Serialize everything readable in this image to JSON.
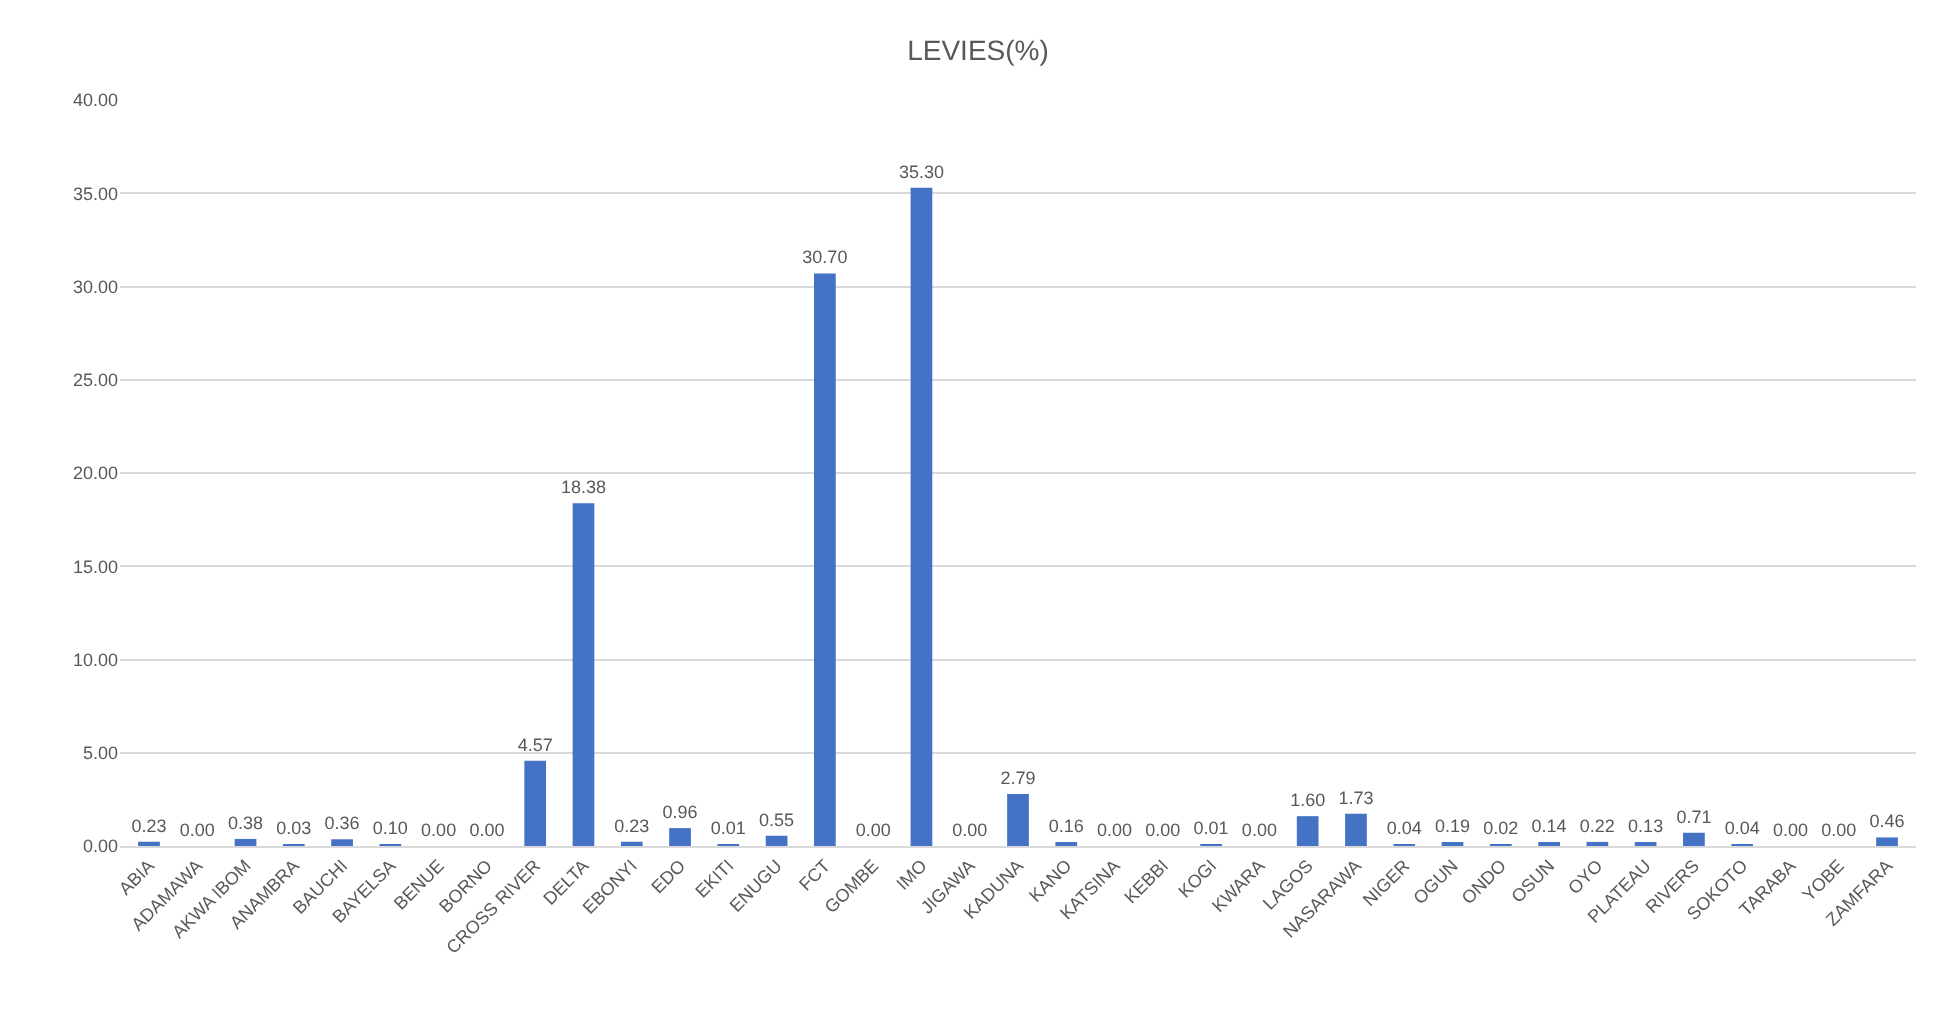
{
  "chart_data": {
    "type": "bar",
    "title": "LEVIES(%)",
    "categories": [
      "ABIA",
      "ADAMAWA",
      "AKWA IBOM",
      "ANAMBRA",
      "BAUCHI",
      "BAYELSA",
      "BENUE",
      "BORNO",
      "CROSS RIVER",
      "DELTA",
      "EBONYI",
      "EDO",
      "EKITI",
      "ENUGU",
      "FCT",
      "GOMBE",
      "IMO",
      "JIGAWA",
      "KADUNA",
      "KANO",
      "KATSINA",
      "KEBBI",
      "KOGI",
      "KWARA",
      "LAGOS",
      "NASARAWA",
      "NIGER",
      "OGUN",
      "ONDO",
      "OSUN",
      "OYO",
      "PLATEAU",
      "RIVERS",
      "SOKOTO",
      "TARABA",
      "YOBE",
      "ZAMFARA"
    ],
    "values": [
      0.23,
      0.0,
      0.38,
      0.03,
      0.36,
      0.1,
      0.0,
      0.0,
      4.57,
      18.38,
      0.23,
      0.96,
      0.01,
      0.55,
      30.7,
      0.0,
      35.3,
      0.0,
      2.79,
      0.16,
      0.0,
      0.0,
      0.01,
      0.0,
      1.6,
      1.73,
      0.04,
      0.19,
      0.02,
      0.14,
      0.22,
      0.13,
      0.71,
      0.04,
      0.0,
      0.0,
      0.46
    ],
    "value_labels": [
      "0.23",
      "0.00",
      "0.38",
      "0.03",
      "0.36",
      "0.10",
      "0.00",
      "0.00",
      "4.57",
      "18.38",
      "0.23",
      "0.96",
      "0.01",
      "0.55",
      "30.70",
      "0.00",
      "35.30",
      "0.00",
      "2.79",
      "0.16",
      "0.00",
      "0.00",
      "0.01",
      "0.00",
      "1.60",
      "1.73",
      "0.04",
      "0.19",
      "0.02",
      "0.14",
      "0.22",
      "0.13",
      "0.71",
      "0.04",
      "0.00",
      "0.00",
      "0.46"
    ],
    "color": "#4472c4",
    "ylim": [
      0,
      40
    ],
    "yticks": [
      {
        "value": 0,
        "label": "0.00"
      },
      {
        "value": 5,
        "label": "5.00"
      },
      {
        "value": 10,
        "label": "10.00"
      },
      {
        "value": 15,
        "label": "15.00"
      },
      {
        "value": 20,
        "label": "20.00"
      },
      {
        "value": 25,
        "label": "25.00"
      },
      {
        "value": 30,
        "label": "30.00"
      },
      {
        "value": 35,
        "label": "35.00"
      },
      {
        "value": 40,
        "label": "40.00"
      }
    ],
    "grid": "y"
  }
}
